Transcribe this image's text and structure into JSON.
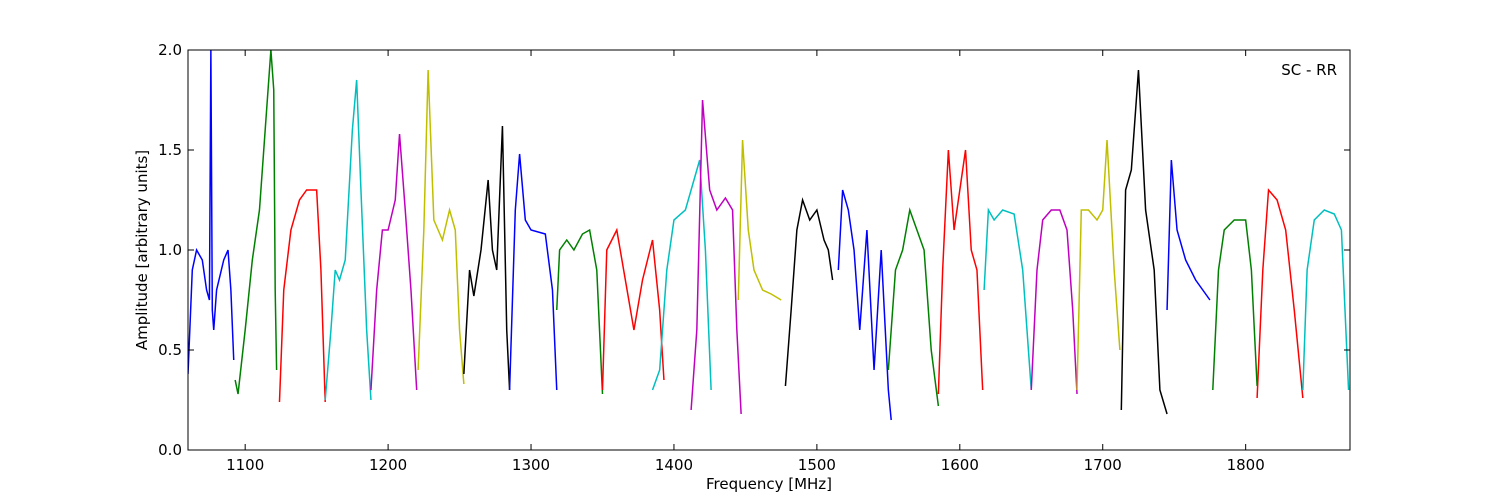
{
  "chart_data": {
    "type": "line",
    "xlabel": "Frequency [MHz]",
    "ylabel": "Amplitude [arbitrary units]",
    "annotation": "SC - RR",
    "xlim": [
      1060,
      1873
    ],
    "ylim": [
      0,
      2
    ],
    "xticks": [
      1100,
      1200,
      1300,
      1400,
      1500,
      1600,
      1700,
      1800
    ],
    "yticks": [
      {
        "value": 0,
        "label": "0.0"
      },
      {
        "value": 0.5,
        "label": "0.5"
      },
      {
        "value": 1,
        "label": "1.0"
      },
      {
        "value": 1.5,
        "label": "1.5"
      },
      {
        "value": 2,
        "label": "2.0"
      }
    ],
    "series": [
      {
        "color": "#0000ff",
        "x": [
          1060,
          1063,
          1066,
          1070,
          1073,
          1075,
          1076,
          1077,
          1078,
          1080,
          1085,
          1088,
          1090,
          1092
        ],
        "values": [
          0.38,
          0.9,
          1.0,
          0.95,
          0.8,
          0.75,
          2.0,
          0.7,
          0.6,
          0.8,
          0.95,
          1.0,
          0.8,
          0.45
        ]
      },
      {
        "color": "#008000",
        "x": [
          1093,
          1095,
          1100,
          1105,
          1110,
          1115,
          1118,
          1120,
          1121,
          1122
        ],
        "values": [
          0.35,
          0.28,
          0.6,
          0.95,
          1.2,
          1.7,
          2.0,
          1.8,
          0.8,
          0.4
        ]
      },
      {
        "color": "#ff0000",
        "x": [
          1124,
          1127,
          1132,
          1138,
          1143,
          1150,
          1153,
          1156
        ],
        "values": [
          0.24,
          0.8,
          1.1,
          1.25,
          1.3,
          1.3,
          0.9,
          0.24
        ]
      },
      {
        "color": "#00bfbf",
        "x": [
          1156,
          1160,
          1163,
          1166,
          1170,
          1175,
          1178,
          1181,
          1185,
          1188
        ],
        "values": [
          0.25,
          0.6,
          0.9,
          0.85,
          0.95,
          1.6,
          1.85,
          1.3,
          0.6,
          0.25
        ]
      },
      {
        "color": "#bf00bf",
        "x": [
          1188,
          1192,
          1196,
          1200,
          1205,
          1208,
          1212,
          1216,
          1220
        ],
        "values": [
          0.3,
          0.8,
          1.1,
          1.1,
          1.25,
          1.58,
          1.2,
          0.8,
          0.3
        ]
      },
      {
        "color": "#bfbf00",
        "x": [
          1221,
          1225,
          1228,
          1232,
          1238,
          1243,
          1247,
          1250,
          1253
        ],
        "values": [
          0.4,
          1.1,
          1.9,
          1.15,
          1.05,
          1.2,
          1.1,
          0.6,
          0.33
        ]
      },
      {
        "color": "#000000",
        "x": [
          1253,
          1257,
          1260,
          1265,
          1270,
          1273,
          1276,
          1280,
          1283,
          1285
        ],
        "values": [
          0.38,
          0.9,
          0.77,
          1.0,
          1.35,
          1.0,
          0.9,
          1.62,
          0.6,
          0.3
        ]
      },
      {
        "color": "#0000ff",
        "x": [
          1285,
          1289,
          1292,
          1296,
          1300,
          1310,
          1315,
          1318
        ],
        "values": [
          0.3,
          1.2,
          1.48,
          1.15,
          1.1,
          1.08,
          0.8,
          0.3
        ]
      },
      {
        "color": "#008000",
        "x": [
          1318,
          1320,
          1325,
          1330,
          1336,
          1341,
          1346,
          1350
        ],
        "values": [
          0.7,
          1.0,
          1.05,
          1.0,
          1.08,
          1.1,
          0.9,
          0.28
        ]
      },
      {
        "color": "#ff0000",
        "x": [
          1350,
          1353,
          1360,
          1366,
          1372,
          1378,
          1385,
          1390,
          1393
        ],
        "values": [
          0.3,
          1.0,
          1.1,
          0.85,
          0.6,
          0.85,
          1.05,
          0.7,
          0.35
        ]
      },
      {
        "color": "#00bfbf",
        "x": [
          1385,
          1390,
          1395,
          1400,
          1408,
          1414,
          1418,
          1422,
          1426
        ],
        "values": [
          0.3,
          0.4,
          0.9,
          1.15,
          1.2,
          1.35,
          1.45,
          1.0,
          0.3
        ]
      },
      {
        "color": "#bf00bf",
        "x": [
          1412,
          1416,
          1420,
          1425,
          1430,
          1436,
          1441,
          1444,
          1447
        ],
        "values": [
          0.2,
          0.6,
          1.75,
          1.3,
          1.2,
          1.26,
          1.2,
          0.6,
          0.18
        ]
      },
      {
        "color": "#bfbf00",
        "x": [
          1445,
          1448,
          1452,
          1456,
          1462,
          1468,
          1475
        ],
        "values": [
          0.75,
          1.55,
          1.1,
          0.9,
          0.8,
          0.78,
          0.75
        ]
      },
      {
        "color": "#000000",
        "x": [
          1478,
          1482,
          1486,
          1490,
          1495,
          1500,
          1505,
          1508,
          1511
        ],
        "values": [
          0.32,
          0.7,
          1.1,
          1.25,
          1.15,
          1.2,
          1.05,
          1.0,
          0.85
        ]
      },
      {
        "color": "#0000ff",
        "x": [
          1515,
          1518,
          1522,
          1526,
          1530,
          1535,
          1540,
          1545,
          1550,
          1552
        ],
        "values": [
          0.9,
          1.3,
          1.2,
          1.0,
          0.6,
          1.1,
          0.4,
          1.0,
          0.3,
          0.15
        ]
      },
      {
        "color": "#008000",
        "x": [
          1550,
          1555,
          1560,
          1565,
          1570,
          1575,
          1580,
          1585
        ],
        "values": [
          0.4,
          0.9,
          1.0,
          1.2,
          1.1,
          1.0,
          0.5,
          0.22
        ]
      },
      {
        "color": "#ff0000",
        "x": [
          1585,
          1588,
          1592,
          1596,
          1600,
          1604,
          1608,
          1612,
          1616
        ],
        "values": [
          0.28,
          0.9,
          1.5,
          1.1,
          1.3,
          1.5,
          1.0,
          0.9,
          0.3
        ]
      },
      {
        "color": "#00bfbf",
        "x": [
          1617,
          1620,
          1624,
          1630,
          1638,
          1644,
          1650
        ],
        "values": [
          0.8,
          1.2,
          1.15,
          1.2,
          1.18,
          0.9,
          0.3
        ]
      },
      {
        "color": "#bf00bf",
        "x": [
          1650,
          1654,
          1658,
          1664,
          1670,
          1675,
          1679,
          1682
        ],
        "values": [
          0.3,
          0.9,
          1.15,
          1.2,
          1.2,
          1.1,
          0.7,
          0.28
        ]
      },
      {
        "color": "#bfbf00",
        "x": [
          1682,
          1685,
          1690,
          1696,
          1700,
          1703,
          1708,
          1712
        ],
        "values": [
          0.3,
          1.2,
          1.2,
          1.15,
          1.2,
          1.55,
          0.9,
          0.5
        ]
      },
      {
        "color": "#000000",
        "x": [
          1713,
          1716,
          1720,
          1725,
          1730,
          1736,
          1740,
          1745
        ],
        "values": [
          0.2,
          1.3,
          1.4,
          1.9,
          1.2,
          0.9,
          0.3,
          0.18
        ]
      },
      {
        "color": "#0000ff",
        "x": [
          1745,
          1748,
          1752,
          1758,
          1765,
          1770,
          1775
        ],
        "values": [
          0.7,
          1.45,
          1.1,
          0.95,
          0.85,
          0.8,
          0.75
        ]
      },
      {
        "color": "#008000",
        "x": [
          1777,
          1781,
          1785,
          1792,
          1800,
          1804,
          1808
        ],
        "values": [
          0.3,
          0.9,
          1.1,
          1.15,
          1.15,
          0.9,
          0.32
        ]
      },
      {
        "color": "#ff0000",
        "x": [
          1808,
          1812,
          1816,
          1822,
          1828,
          1834,
          1840
        ],
        "values": [
          0.26,
          0.9,
          1.3,
          1.25,
          1.1,
          0.7,
          0.26
        ]
      },
      {
        "color": "#00bfbf",
        "x": [
          1840,
          1843,
          1848,
          1855,
          1862,
          1867,
          1872
        ],
        "values": [
          0.3,
          0.9,
          1.15,
          1.2,
          1.18,
          1.1,
          0.3
        ]
      }
    ]
  }
}
